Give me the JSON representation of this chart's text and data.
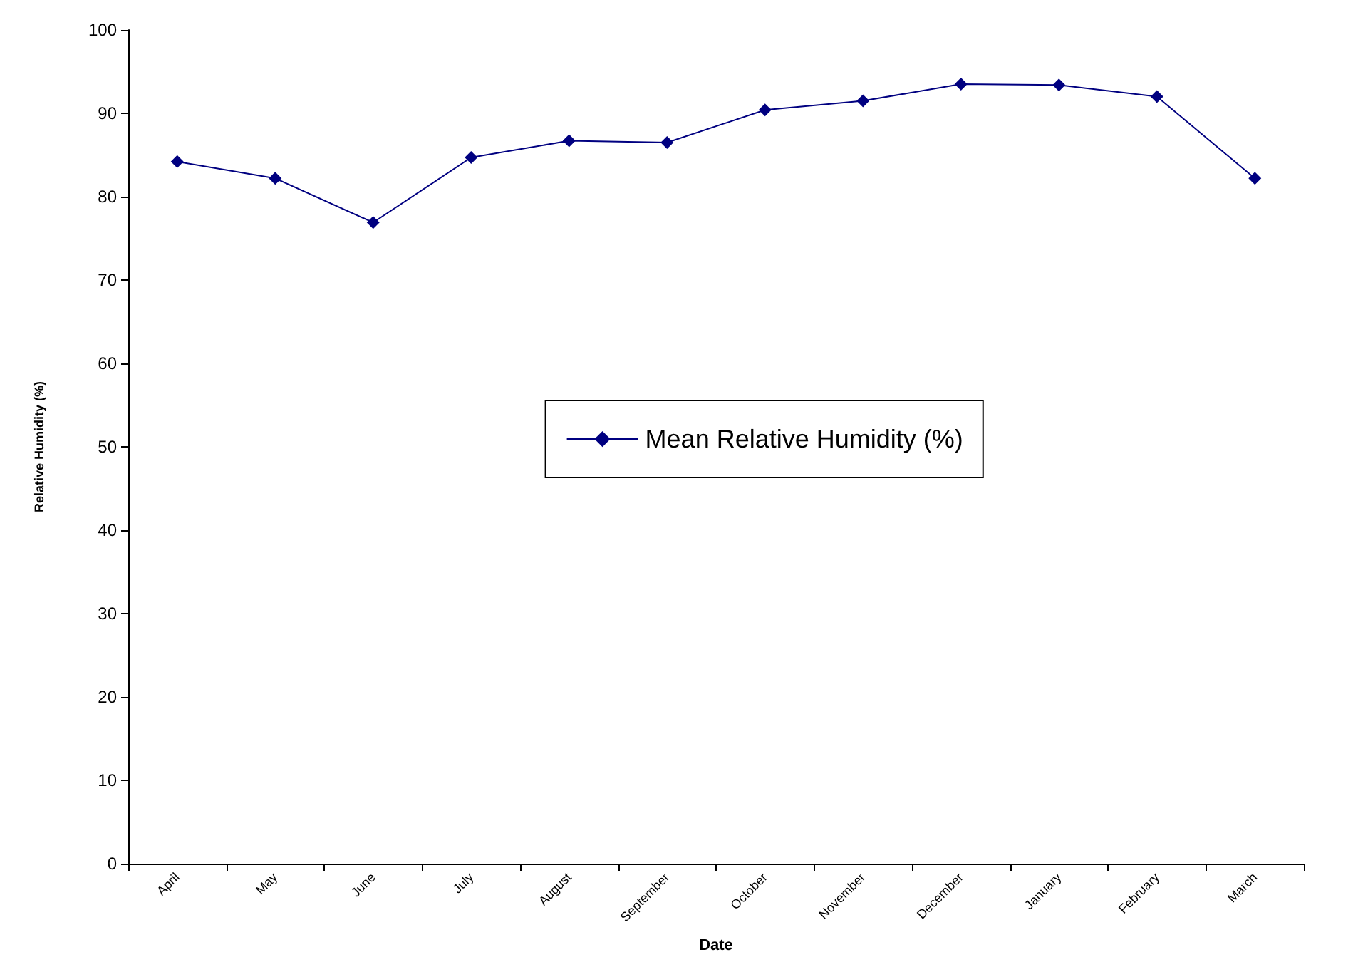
{
  "chart_data": {
    "type": "line",
    "xlabel": "Date",
    "ylabel": "Relative Humidity (%)",
    "categories": [
      "April",
      "May",
      "June",
      "July",
      "August",
      "September",
      "October",
      "November",
      "December",
      "January",
      "February",
      "March"
    ],
    "series": [
      {
        "name": "Mean Relative Humidity (%)",
        "color": "#000080",
        "values": [
          84.2,
          82.2,
          76.9,
          84.7,
          86.7,
          86.5,
          90.4,
          91.5,
          93.5,
          93.4,
          92.0,
          82.2
        ]
      }
    ],
    "ylim": [
      0,
      100
    ],
    "yticks": [
      0,
      10,
      20,
      30,
      40,
      50,
      60,
      70,
      80,
      90,
      100
    ],
    "grid": false,
    "legend": "center",
    "marker": "diamond",
    "line_style": "solid"
  }
}
